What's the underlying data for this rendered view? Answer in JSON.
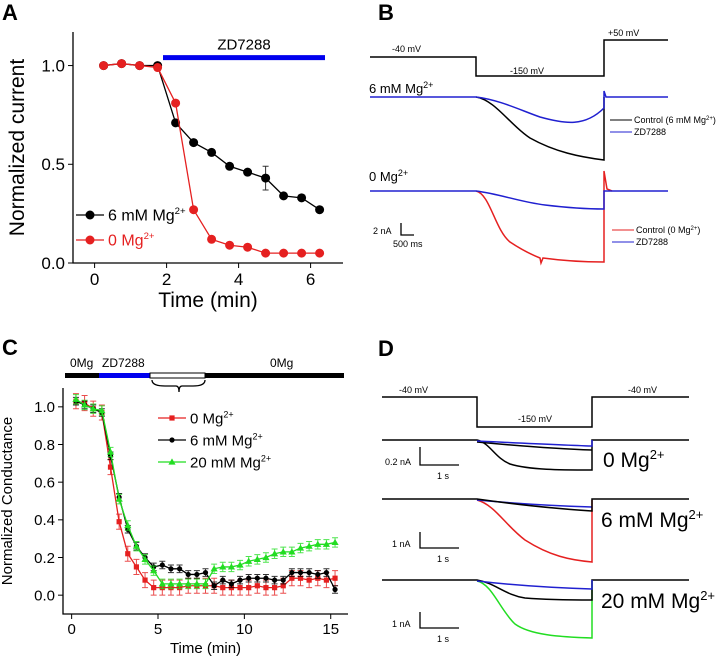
{
  "panels": {
    "A": {
      "letter": "A"
    },
    "B": {
      "letter": "B",
      "v_hold": "-40 mV",
      "v_step": "-150 mV",
      "v_post": "+50 mV",
      "cond1": "6 mM Mg",
      "cond1_sup": "2+",
      "cond2": "0 Mg",
      "cond2_sup": "2+",
      "legend1": [
        "Control (6 mM Mg",
        "2+",
        ")"
      ],
      "legend1_b": "ZD7288",
      "legend2": [
        "Control (0 Mg",
        "2+",
        ")"
      ],
      "legend2_b": "ZD7288",
      "scale_y": "2 nA",
      "scale_x": "500 ms",
      "colors": {
        "control_6mM": "#000000",
        "zd": "#2020d0",
        "control_0": "#e52020"
      }
    },
    "C": {
      "letter": "C",
      "bar_labels": [
        "0Mg",
        "ZD7288",
        "0Mg"
      ]
    },
    "D": {
      "letter": "D",
      "v_hold": "-40 mV",
      "v_step": "-150 mV",
      "v_post": "-40 mV",
      "rows": [
        {
          "label": "0 Mg",
          "sup": "2+",
          "scale_y": "0.2 nA",
          "scale_x": "1 s"
        },
        {
          "label": "6 mM  Mg",
          "sup": "2+",
          "scale_y": "1 nA",
          "scale_x": "1 s"
        },
        {
          "label": "20 mM  Mg",
          "sup": "2+",
          "scale_y": "1 nA",
          "scale_x": "1 s"
        }
      ],
      "colors": {
        "black": "#000000",
        "blue": "#2020d0",
        "red": "#e52020",
        "green": "#22dd22"
      }
    }
  },
  "chart_data": [
    {
      "type": "line",
      "panel": "A",
      "xlabel": "Time (min)",
      "ylabel": "Normalized current",
      "xlim": [
        -0.6,
        6.9
      ],
      "ylim": [
        0,
        1.17
      ],
      "xticks": [
        "0",
        "2",
        "4",
        "6"
      ],
      "yticks": [
        "0.0",
        "0.5",
        "1.0"
      ],
      "annotation": {
        "text": "ZD7288",
        "from": 1.9,
        "to": 6.4,
        "color": "#0000ee"
      },
      "x": [
        0.25,
        0.75,
        1.25,
        1.75,
        2.25,
        2.75,
        3.25,
        3.75,
        4.25,
        4.75,
        5.25,
        5.75,
        6.25
      ],
      "series": [
        {
          "name": "6 mM Mg",
          "sup": "2+",
          "color": "#000000",
          "values": [
            1.0,
            1.01,
            1.0,
            1.0,
            0.71,
            0.61,
            0.56,
            0.49,
            0.46,
            0.43,
            0.34,
            0.33,
            0.27
          ],
          "err": [
            0,
            0,
            0,
            0,
            0,
            0,
            0,
            0.01,
            0,
            0.06,
            0,
            0,
            0
          ]
        },
        {
          "name": "0 Mg",
          "sup": "2+",
          "color": "#e52020",
          "values": [
            1.0,
            1.01,
            1.0,
            0.99,
            0.81,
            0.27,
            0.12,
            0.09,
            0.08,
            0.05,
            0.05,
            0.05,
            0.05
          ],
          "err": [
            0,
            0,
            0,
            0,
            0,
            0,
            0,
            0,
            0,
            0,
            0,
            0,
            0
          ]
        }
      ],
      "legend": "bottom-left"
    },
    {
      "type": "line",
      "panel": "C",
      "xlabel": "Time (min)",
      "ylabel": "Normalized Conductance",
      "xlim": [
        -0.5,
        16
      ],
      "ylim": [
        -0.1,
        1.1
      ],
      "xticks": [
        "0",
        "5",
        "10",
        "15"
      ],
      "yticks": [
        "0.0",
        "0.2",
        "0.4",
        "0.6",
        "0.8",
        "1.0"
      ],
      "x": [
        0.25,
        0.75,
        1.25,
        1.75,
        2.25,
        2.75,
        3.25,
        3.75,
        4.25,
        4.75,
        5.25,
        5.75,
        6.25,
        6.75,
        7.25,
        7.75,
        8.25,
        8.75,
        9.25,
        9.75,
        10.25,
        10.75,
        11.25,
        11.75,
        12.25,
        12.75,
        13.25,
        13.75,
        14.25,
        14.75,
        15.25
      ],
      "series": [
        {
          "name": "0 Mg",
          "sup": "2+",
          "color": "#e52020",
          "marker": "square",
          "values": [
            1.03,
            1.02,
            0.99,
            0.97,
            0.68,
            0.39,
            0.22,
            0.15,
            0.08,
            0.04,
            0.04,
            0.04,
            0.04,
            0.05,
            0.05,
            0.05,
            0.05,
            0.04,
            0.04,
            0.04,
            0.04,
            0.05,
            0.04,
            0.04,
            0.05,
            0.09,
            0.09,
            0.08,
            0.09,
            0.08,
            0.09
          ],
          "err": 0.04
        },
        {
          "name": "6 mM Mg",
          "sup": "2+",
          "color": "#000000",
          "marker": "circle",
          "values": [
            1.03,
            1.01,
            0.99,
            0.97,
            0.74,
            0.52,
            0.35,
            0.26,
            0.2,
            0.15,
            0.16,
            0.14,
            0.14,
            0.11,
            0.11,
            0.12,
            0.05,
            0.08,
            0.06,
            0.08,
            0.09,
            0.09,
            0.09,
            0.08,
            0.08,
            0.12,
            0.12,
            0.12,
            0.11,
            0.12,
            0.03
          ],
          "err": 0.02
        },
        {
          "name": "20 mM Mg",
          "sup": "2+",
          "color": "#22dd22",
          "marker": "triangle",
          "values": [
            1.04,
            1.01,
            0.99,
            0.98,
            0.76,
            0.51,
            0.37,
            0.26,
            0.19,
            0.13,
            0.06,
            0.06,
            0.06,
            0.06,
            0.06,
            0.06,
            0.14,
            0.15,
            0.15,
            0.16,
            0.18,
            0.19,
            0.2,
            0.22,
            0.23,
            0.23,
            0.25,
            0.26,
            0.27,
            0.27,
            0.28
          ],
          "err": 0.025
        }
      ],
      "legend": "top-right"
    }
  ]
}
